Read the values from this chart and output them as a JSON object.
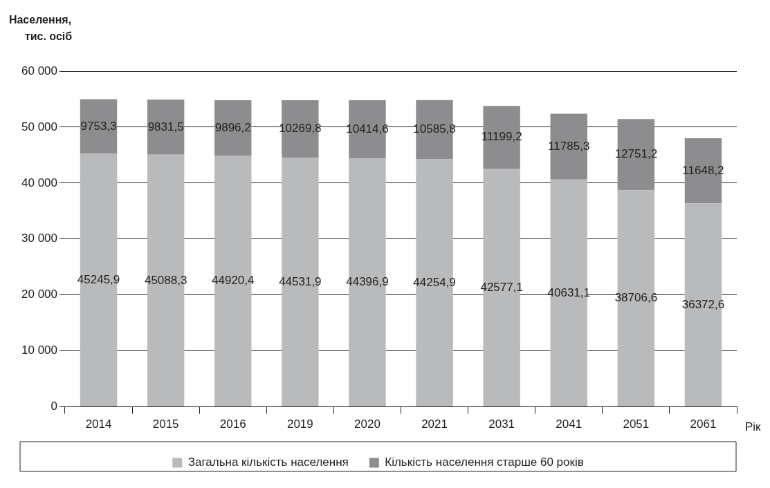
{
  "chart_data": {
    "type": "bar",
    "stacked": true,
    "ylabel": "Населення,\nтис. осіб",
    "xlabel": "Рік",
    "categories": [
      "2014",
      "2015",
      "2016",
      "2019",
      "2020",
      "2021",
      "2031",
      "2041",
      "2051",
      "2061"
    ],
    "series": [
      {
        "name": "Загальна кількість населення",
        "color": "#b9babc",
        "values": [
          45245.9,
          45088.3,
          44920.4,
          44531.9,
          44396.9,
          44254.9,
          42577.1,
          40631.1,
          38706.6,
          36372.6
        ],
        "value_labels": [
          "45245,9",
          "45088,3",
          "44920,4",
          "44531,9",
          "44396,9",
          "44254,9",
          "42577,1",
          "40631,1",
          "38706,6",
          "36372,6"
        ]
      },
      {
        "name": "Кількість населення старше 60 років",
        "color": "#8d8d8f",
        "values": [
          9753.3,
          9831.5,
          9896.2,
          10269.8,
          10414.6,
          10585.8,
          11199.2,
          11785.3,
          12751.2,
          11648.2
        ],
        "value_labels": [
          "9753,3",
          "9831,5",
          "9896,2",
          "10269,8",
          "10414,6",
          "10585,8",
          "11199,2",
          "11785,3",
          "12751,2",
          "11648,2"
        ]
      }
    ],
    "ylim": [
      0,
      60000
    ],
    "yticks": [
      {
        "value": 0,
        "label": "0"
      },
      {
        "value": 10000,
        "label": "10 000"
      },
      {
        "value": 20000,
        "label": "20 000"
      },
      {
        "value": 30000,
        "label": "30 000"
      },
      {
        "value": 40000,
        "label": "40 000"
      },
      {
        "value": 50000,
        "label": "50 000"
      },
      {
        "value": 60000,
        "label": "60 000"
      }
    ],
    "grid": "y",
    "legend": "bottom"
  }
}
